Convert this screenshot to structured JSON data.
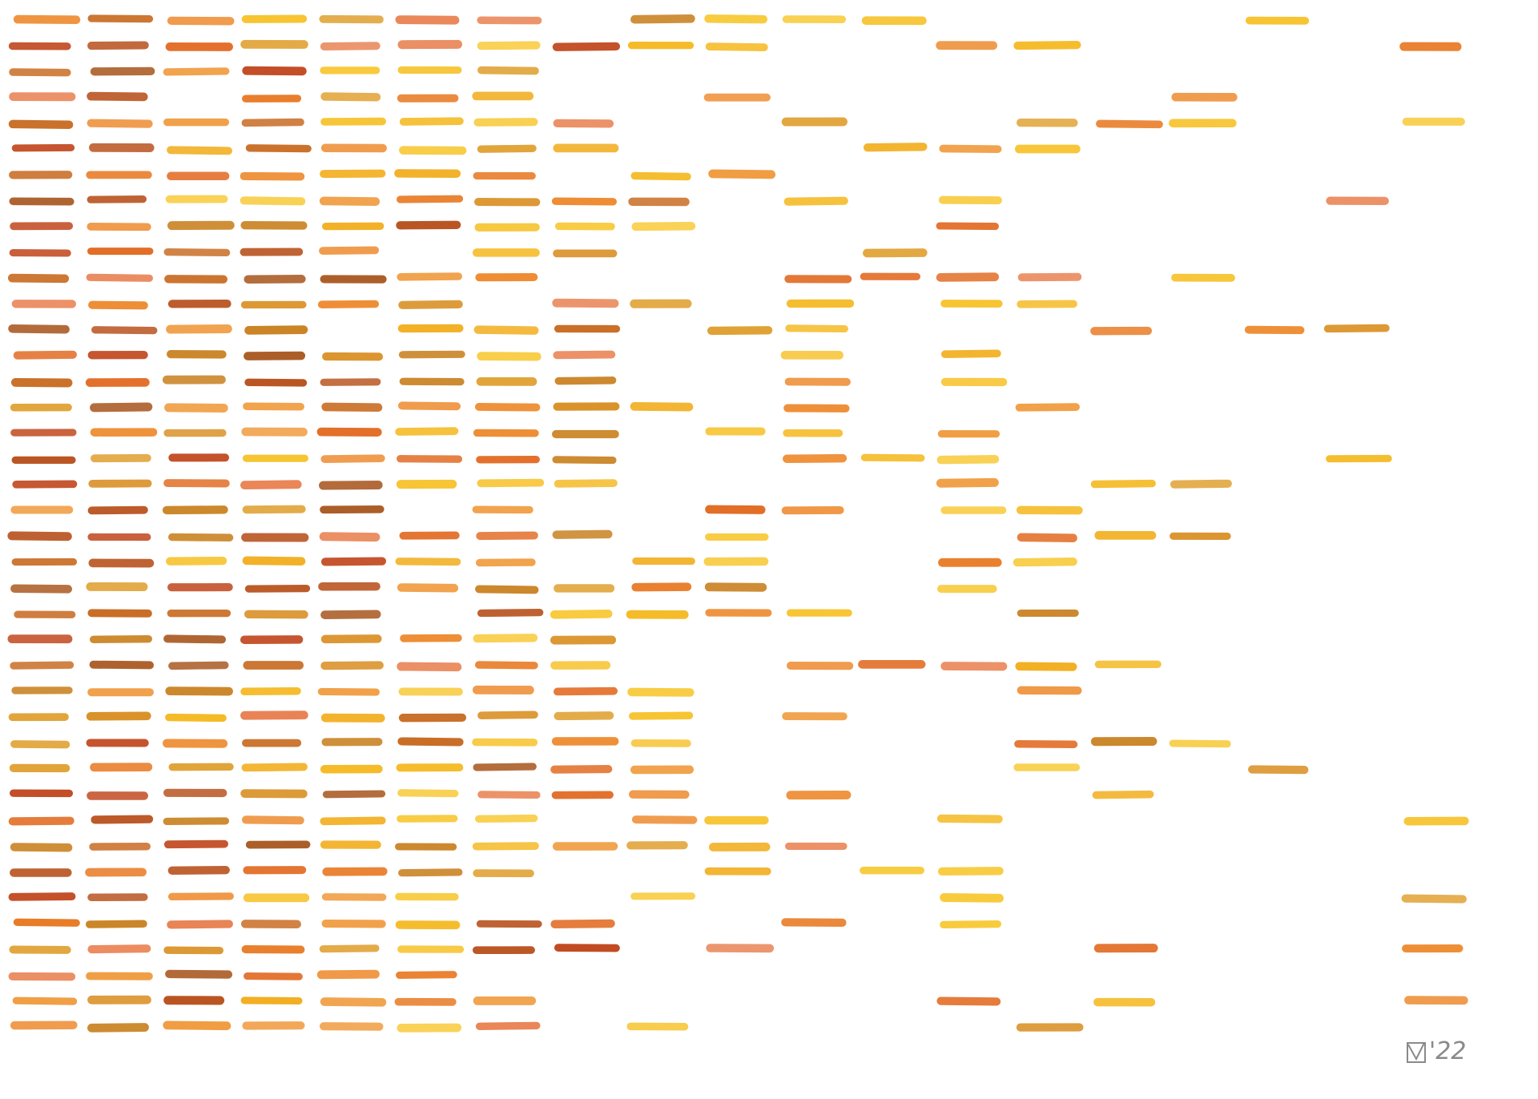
{
  "signature": {
    "year": "'22"
  }
}
